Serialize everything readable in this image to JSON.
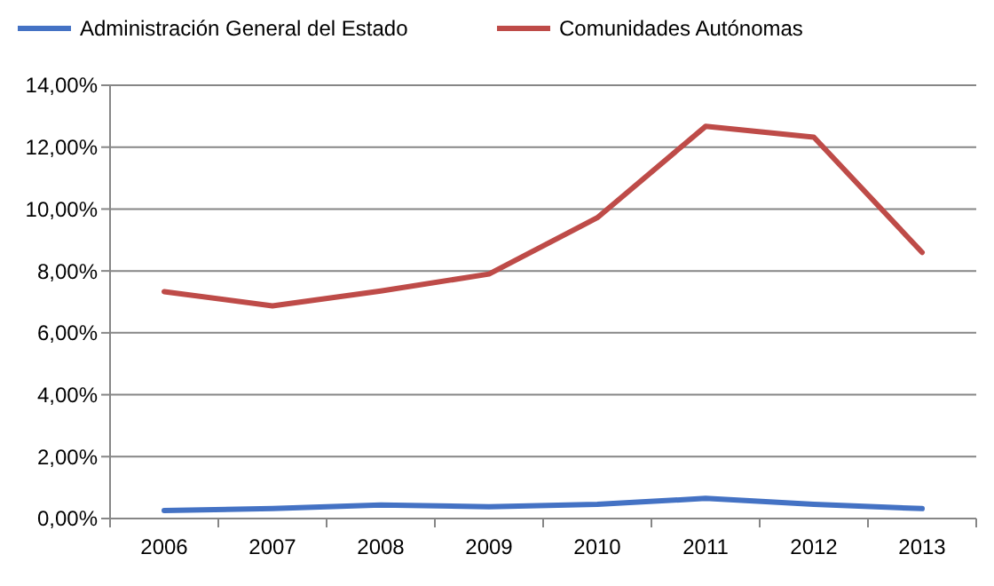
{
  "chart_data": {
    "type": "line",
    "categories": [
      "2006",
      "2007",
      "2008",
      "2009",
      "2010",
      "2011",
      "2012",
      "2013"
    ],
    "series": [
      {
        "name": "Administración General del Estado",
        "color": "#4472c4",
        "values": [
          0.26,
          0.32,
          0.44,
          0.38,
          0.46,
          0.65,
          0.46,
          0.32
        ]
      },
      {
        "name": "Comunidades Autónomas",
        "color": "#be4b48",
        "values": [
          7.33,
          6.87,
          7.35,
          7.9,
          9.72,
          12.67,
          12.32,
          8.6
        ]
      }
    ],
    "ylim": [
      0,
      14
    ],
    "yticks": [
      {
        "value": 0,
        "label": "0,00%"
      },
      {
        "value": 2,
        "label": "2,00%"
      },
      {
        "value": 4,
        "label": "4,00%"
      },
      {
        "value": 6,
        "label": "6,00%"
      },
      {
        "value": 8,
        "label": "8,00%"
      },
      {
        "value": 10,
        "label": "10,00%"
      },
      {
        "value": 12,
        "label": "12,00%"
      },
      {
        "value": 14,
        "label": "14,00%"
      }
    ],
    "grid": "y",
    "legend": "top",
    "marker": "none",
    "line_style": "solid"
  }
}
